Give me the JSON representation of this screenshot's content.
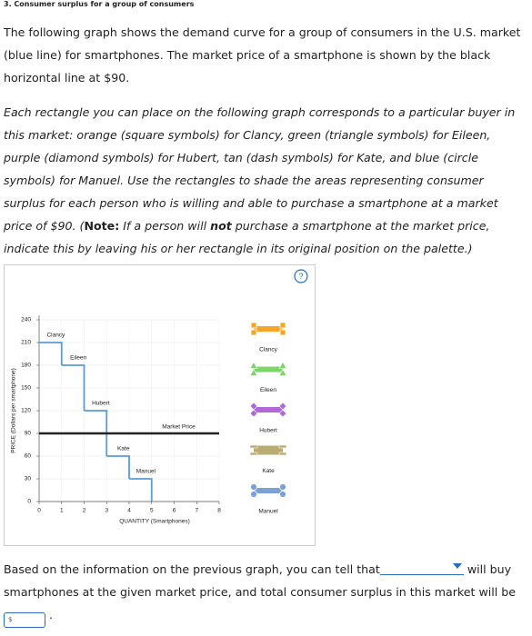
{
  "header": "3. Consumer surplus for a group of consumers",
  "paragraph1": "The following graph shows the demand curve for a group of consumers in the U.S. market (blue line) for smartphones. The market price of a smartphone is shown by the black horizontal line at $90.",
  "paragraph2": [
    "Each rectangle you can place on the following graph corresponds to a particular buyer in this market: orange (square symbols) for Clancy, green (triangle symbols) for Eileen, purple (diamond symbols) for Hubert, tan (dash symbols) for Kate, and blue (circle symbols) for Manuel. Use the rectangles to shade the areas representing consumer surplus for each person who is willing and able to purchase a smartphone at a market price of $90. (",
    "Note:",
    " If a person will ",
    "not",
    " purchase a smartphone at the market price, indicate this by leaving his or her rectangle in its original position on the palette.)"
  ],
  "question": [
    "Based on the information on the previous graph, you can tell that",
    " will buy smartphones at the given market price, and total consumer surplus in this market will be",
    "$",
    " ."
  ],
  "chart_data": {
    "type": "step",
    "xlabel": "QUANTITY (Smartphones)",
    "ylabel": "PRICE (Dollars per smartphone)",
    "categories": [
      "Clancy",
      "Eileen",
      "Hubert",
      "Kate",
      "Manuel"
    ],
    "values": [
      210,
      180,
      120,
      60,
      30
    ],
    "color": "#5b9bd5",
    "market_price": {
      "label": "Market Price",
      "value": 90,
      "color": "#222222"
    },
    "palette": [
      {
        "symbol": "square",
        "color": "#f5a623"
      },
      {
        "symbol": "triangle",
        "color": "#7ed36b"
      },
      {
        "symbol": "diamond",
        "color": "#b06ad6"
      },
      {
        "symbol": "dash",
        "color": "#b8ab74"
      },
      {
        "symbol": "circle",
        "color": "#7aa0d6"
      }
    ],
    "xlim": [
      0,
      8
    ],
    "xticks": [
      0,
      1,
      2,
      3,
      4,
      5,
      6,
      7,
      8
    ],
    "ylim": [
      0,
      240
    ],
    "yticks": [
      0,
      30,
      60,
      90,
      120,
      150,
      180,
      210,
      240
    ],
    "grid": true
  }
}
